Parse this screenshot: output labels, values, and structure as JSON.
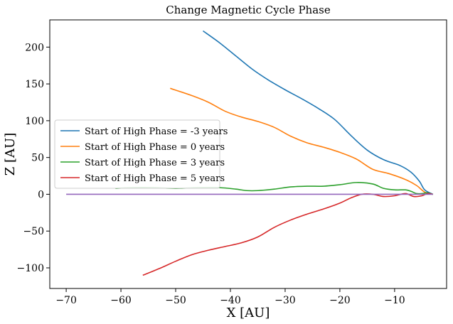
{
  "chart_data": {
    "type": "line",
    "title": "Change Magnetic Cycle Phase",
    "xlabel": "X [AU]",
    "ylabel": "Z [AU]",
    "xlim": [
      -73,
      -0.5
    ],
    "ylim": [
      -128,
      237
    ],
    "xticks": [
      -70,
      -60,
      -50,
      -40,
      -30,
      -20,
      -10
    ],
    "yticks": [
      -100,
      -50,
      0,
      50,
      100,
      150,
      200
    ],
    "xtick_labels": [
      "−70",
      "−60",
      "−50",
      "−40",
      "−30",
      "−20",
      "−10"
    ],
    "ytick_labels": [
      "−100",
      "−50",
      "0",
      "50",
      "100",
      "150",
      "200"
    ],
    "grid": false,
    "legend_position": "center-left",
    "series": [
      {
        "name": "Start of High Phase = -3 years",
        "color": "#1f77b4",
        "x": [
          -45,
          -42,
          -39,
          -36,
          -33,
          -30,
          -27,
          -24,
          -21,
          -18,
          -15,
          -12,
          -9,
          -7,
          -5.5,
          -4.5,
          -3
        ],
        "y": [
          222,
          206,
          188,
          170,
          155,
          142,
          130,
          117,
          102,
          80,
          60,
          47,
          39,
          30,
          18,
          6,
          0
        ]
      },
      {
        "name": "Start of High Phase = 0 years",
        "color": "#ff7f0e",
        "x": [
          -51,
          -47,
          -44,
          -41,
          -38,
          -35,
          -32,
          -29,
          -26,
          -23,
          -20,
          -17,
          -14,
          -11,
          -8,
          -6,
          -4.5,
          -3
        ],
        "y": [
          144,
          134,
          125,
          113,
          105,
          99,
          91,
          79,
          70,
          64,
          57,
          48,
          34,
          28,
          20,
          12,
          3,
          0
        ]
      },
      {
        "name": "Start of High Phase = 3 years",
        "color": "#2ca02c",
        "x": [
          -61,
          -58,
          -54,
          -50,
          -46,
          -42,
          -39,
          -37,
          -35,
          -32,
          -29,
          -26,
          -23,
          -20,
          -17,
          -14,
          -12,
          -10,
          -8,
          -7,
          -6,
          -5,
          -4,
          -3
        ],
        "y": [
          8,
          9,
          9,
          8,
          9,
          9,
          7,
          5,
          5,
          7,
          10,
          11,
          11,
          13,
          16,
          14,
          8,
          6,
          6,
          4,
          1,
          1,
          2,
          0
        ]
      },
      {
        "name": "Start of High Phase = 5 years",
        "color": "#d62728",
        "x": [
          -56,
          -53,
          -50,
          -47,
          -44,
          -41,
          -38,
          -35,
          -32,
          -29,
          -26,
          -23,
          -20,
          -18,
          -16,
          -14,
          -12,
          -10,
          -8,
          -6.5,
          -5,
          -4,
          -3
        ],
        "y": [
          -110,
          -101,
          -91,
          -82,
          -76,
          -71,
          -66,
          -58,
          -45,
          -35,
          -27,
          -20,
          -12,
          -5,
          0,
          0,
          -3,
          -2,
          1,
          -3,
          -2,
          1,
          0
        ]
      },
      {
        "color": "#9467bd",
        "x": [
          -70,
          -3
        ],
        "y": [
          0,
          0
        ]
      }
    ]
  }
}
